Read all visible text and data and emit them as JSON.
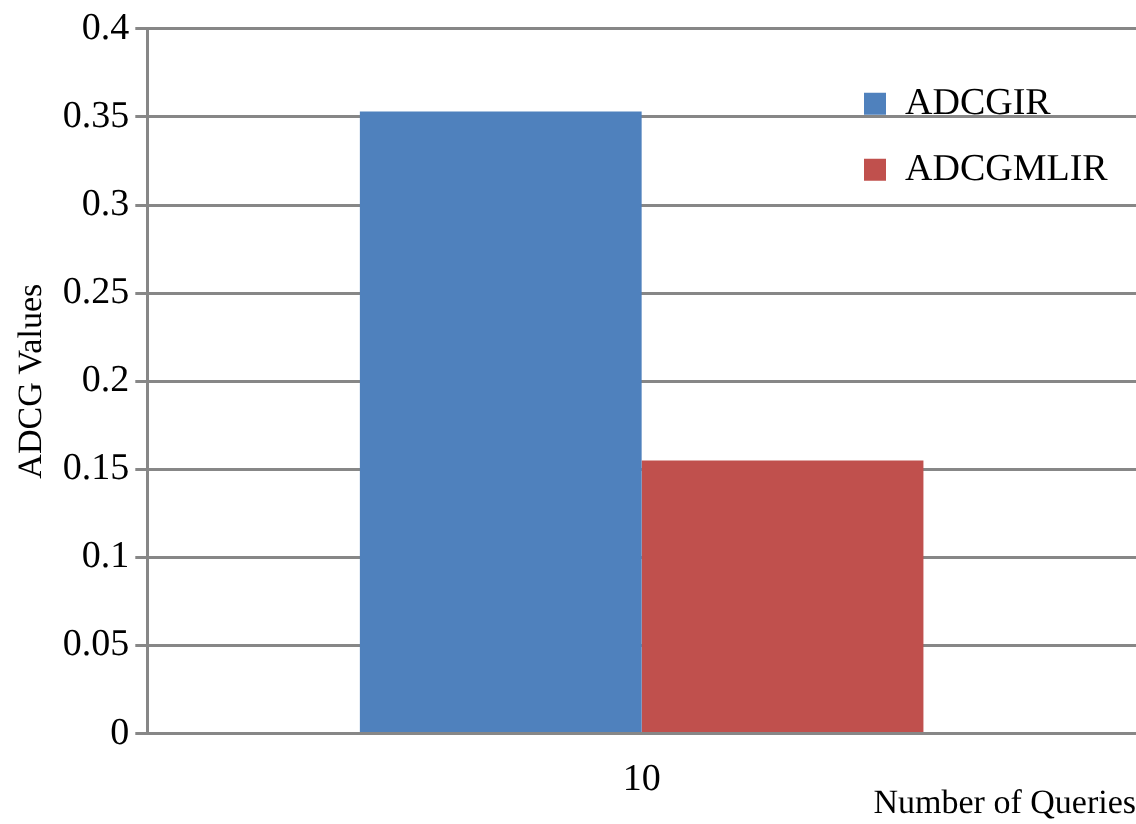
{
  "chart_data": {
    "type": "bar",
    "categories": [
      "10"
    ],
    "xlabel": "Number of Queries",
    "ylabel": "ADCG Values",
    "series": [
      {
        "name": "ADCGIR",
        "color": "#4f81bd",
        "values": [
          0.353
        ]
      },
      {
        "name": "ADCGMLIR",
        "color": "#c0504d",
        "values": [
          0.155
        ]
      }
    ],
    "ylim": [
      0,
      0.4
    ],
    "yticks": [
      0,
      0.05,
      0.1,
      0.15,
      0.2,
      0.25,
      0.3,
      0.35,
      0.4
    ],
    "grid": "y",
    "legend": "top right"
  }
}
